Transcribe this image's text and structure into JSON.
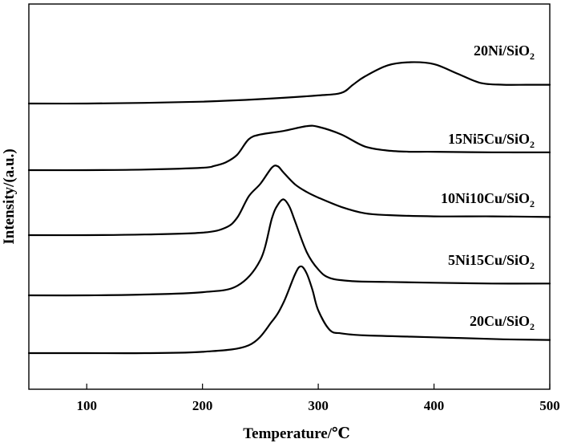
{
  "chart_data": {
    "type": "line",
    "xlabel": "Temperature/℃",
    "ylabel": "Intensity/(a.u.)",
    "xlim": [
      50,
      500
    ],
    "xticks": [
      100,
      200,
      300,
      400,
      500
    ],
    "y_ticks_shown": false,
    "grid": false,
    "series": [
      {
        "name": "20Ni/SiO",
        "name_sub": "2",
        "x": [
          50,
          100,
          150,
          200,
          250,
          300,
          320,
          330,
          340,
          360,
          380,
          400,
          420,
          440,
          460,
          480,
          500
        ],
        "y": [
          0.0,
          0.0,
          0.01,
          0.03,
          0.07,
          0.13,
          0.17,
          0.3,
          0.43,
          0.61,
          0.66,
          0.63,
          0.48,
          0.33,
          0.3,
          0.3,
          0.3
        ]
      },
      {
        "name": "15Ni5Cu/SiO",
        "name_sub": "2",
        "x": [
          50,
          100,
          150,
          200,
          210,
          220,
          230,
          240,
          250,
          270,
          290,
          300,
          320,
          340,
          360,
          380,
          400,
          450,
          500
        ],
        "y": [
          0.0,
          0.0,
          0.01,
          0.04,
          0.07,
          0.13,
          0.26,
          0.52,
          0.6,
          0.66,
          0.74,
          0.73,
          0.6,
          0.4,
          0.33,
          0.31,
          0.31,
          0.3,
          0.3
        ]
      },
      {
        "name": "10Ni10Cu/SiO",
        "name_sub": "2",
        "x": [
          50,
          100,
          150,
          200,
          220,
          230,
          240,
          250,
          260,
          265,
          270,
          280,
          290,
          300,
          320,
          340,
          360,
          400,
          450,
          500
        ],
        "y": [
          0.0,
          0.0,
          0.01,
          0.04,
          0.12,
          0.28,
          0.62,
          0.82,
          1.08,
          1.1,
          1.0,
          0.81,
          0.69,
          0.6,
          0.45,
          0.35,
          0.32,
          0.3,
          0.3,
          0.29
        ]
      },
      {
        "name": "5Ni15Cu/SiO",
        "name_sub": "2",
        "x": [
          50,
          100,
          150,
          200,
          230,
          250,
          260,
          265,
          270,
          275,
          280,
          290,
          300,
          310,
          330,
          360,
          400,
          450,
          500
        ],
        "y": [
          0.0,
          0.0,
          0.01,
          0.04,
          0.12,
          0.45,
          0.98,
          1.15,
          1.22,
          1.13,
          0.94,
          0.55,
          0.33,
          0.22,
          0.18,
          0.17,
          0.16,
          0.15,
          0.15
        ]
      },
      {
        "name": "20Cu/SiO",
        "name_sub": "2",
        "x": [
          50,
          100,
          150,
          200,
          240,
          260,
          270,
          280,
          285,
          290,
          295,
          300,
          310,
          320,
          340,
          380,
          420,
          460,
          500
        ],
        "y": [
          0.0,
          0.0,
          0.0,
          0.02,
          0.12,
          0.48,
          0.77,
          1.2,
          1.32,
          1.21,
          0.96,
          0.65,
          0.35,
          0.3,
          0.27,
          0.25,
          0.23,
          0.21,
          0.2
        ]
      }
    ]
  }
}
